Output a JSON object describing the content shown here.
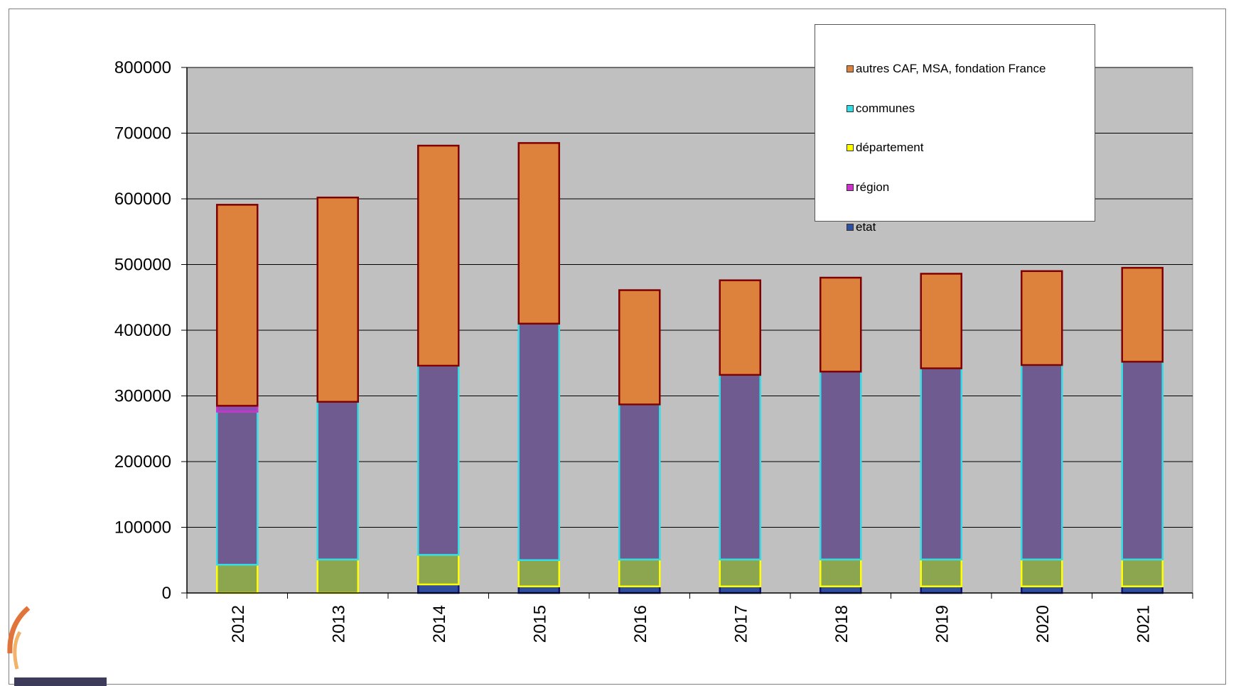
{
  "chart_data": {
    "type": "bar",
    "stacked": true,
    "categories": [
      "2012",
      "2013",
      "2014",
      "2015",
      "2016",
      "2017",
      "2018",
      "2019",
      "2020",
      "2021"
    ],
    "ylim": [
      0,
      800000
    ],
    "yticks": [
      0,
      100000,
      200000,
      300000,
      400000,
      500000,
      600000,
      700000,
      800000
    ],
    "ytick_labels": [
      "0",
      "100000",
      "200000",
      "300000",
      "400000",
      "500000",
      "600000",
      "700000",
      "800000"
    ],
    "grid": true,
    "legend_position": "top-right",
    "series": [
      {
        "name": "etat",
        "fill": "#2f4f9e",
        "stroke": "#10167a",
        "values": [
          0,
          0,
          13000,
          10000,
          10000,
          10000,
          10000,
          10000,
          10000,
          10000
        ]
      },
      {
        "name": "département",
        "fill": "#8ba64e",
        "stroke": "#ffff00",
        "values": [
          43000,
          51000,
          45000,
          40000,
          41000,
          41000,
          41000,
          41000,
          41000,
          41000
        ]
      },
      {
        "name": "communes",
        "fill": "#705b91",
        "stroke": "#33dde6",
        "values": [
          233000,
          240000,
          288000,
          360000,
          236000,
          281000,
          286000,
          291000,
          296000,
          301000
        ]
      },
      {
        "name": "région",
        "fill": "#8a4fb0",
        "stroke": "#cc33cc",
        "values": [
          9000,
          0,
          0,
          0,
          0,
          0,
          0,
          0,
          0,
          0
        ]
      },
      {
        "name": "autres CAF, MSA, fondation France",
        "fill": "#dc823d",
        "stroke": "#800000",
        "values": [
          306000,
          311000,
          335000,
          275000,
          174000,
          144000,
          143000,
          144000,
          143000,
          143000
        ]
      }
    ],
    "legend": [
      {
        "name": "autres CAF, MSA, fondation France",
        "color": "#dc823d"
      },
      {
        "name": "communes",
        "color": "#33dde6"
      },
      {
        "name": "département",
        "color": "#ffff00"
      },
      {
        "name": "région",
        "color": "#cc33cc"
      },
      {
        "name": "etat",
        "color": "#2f4f9e"
      }
    ],
    "plot_background": "#c0c0c0"
  }
}
